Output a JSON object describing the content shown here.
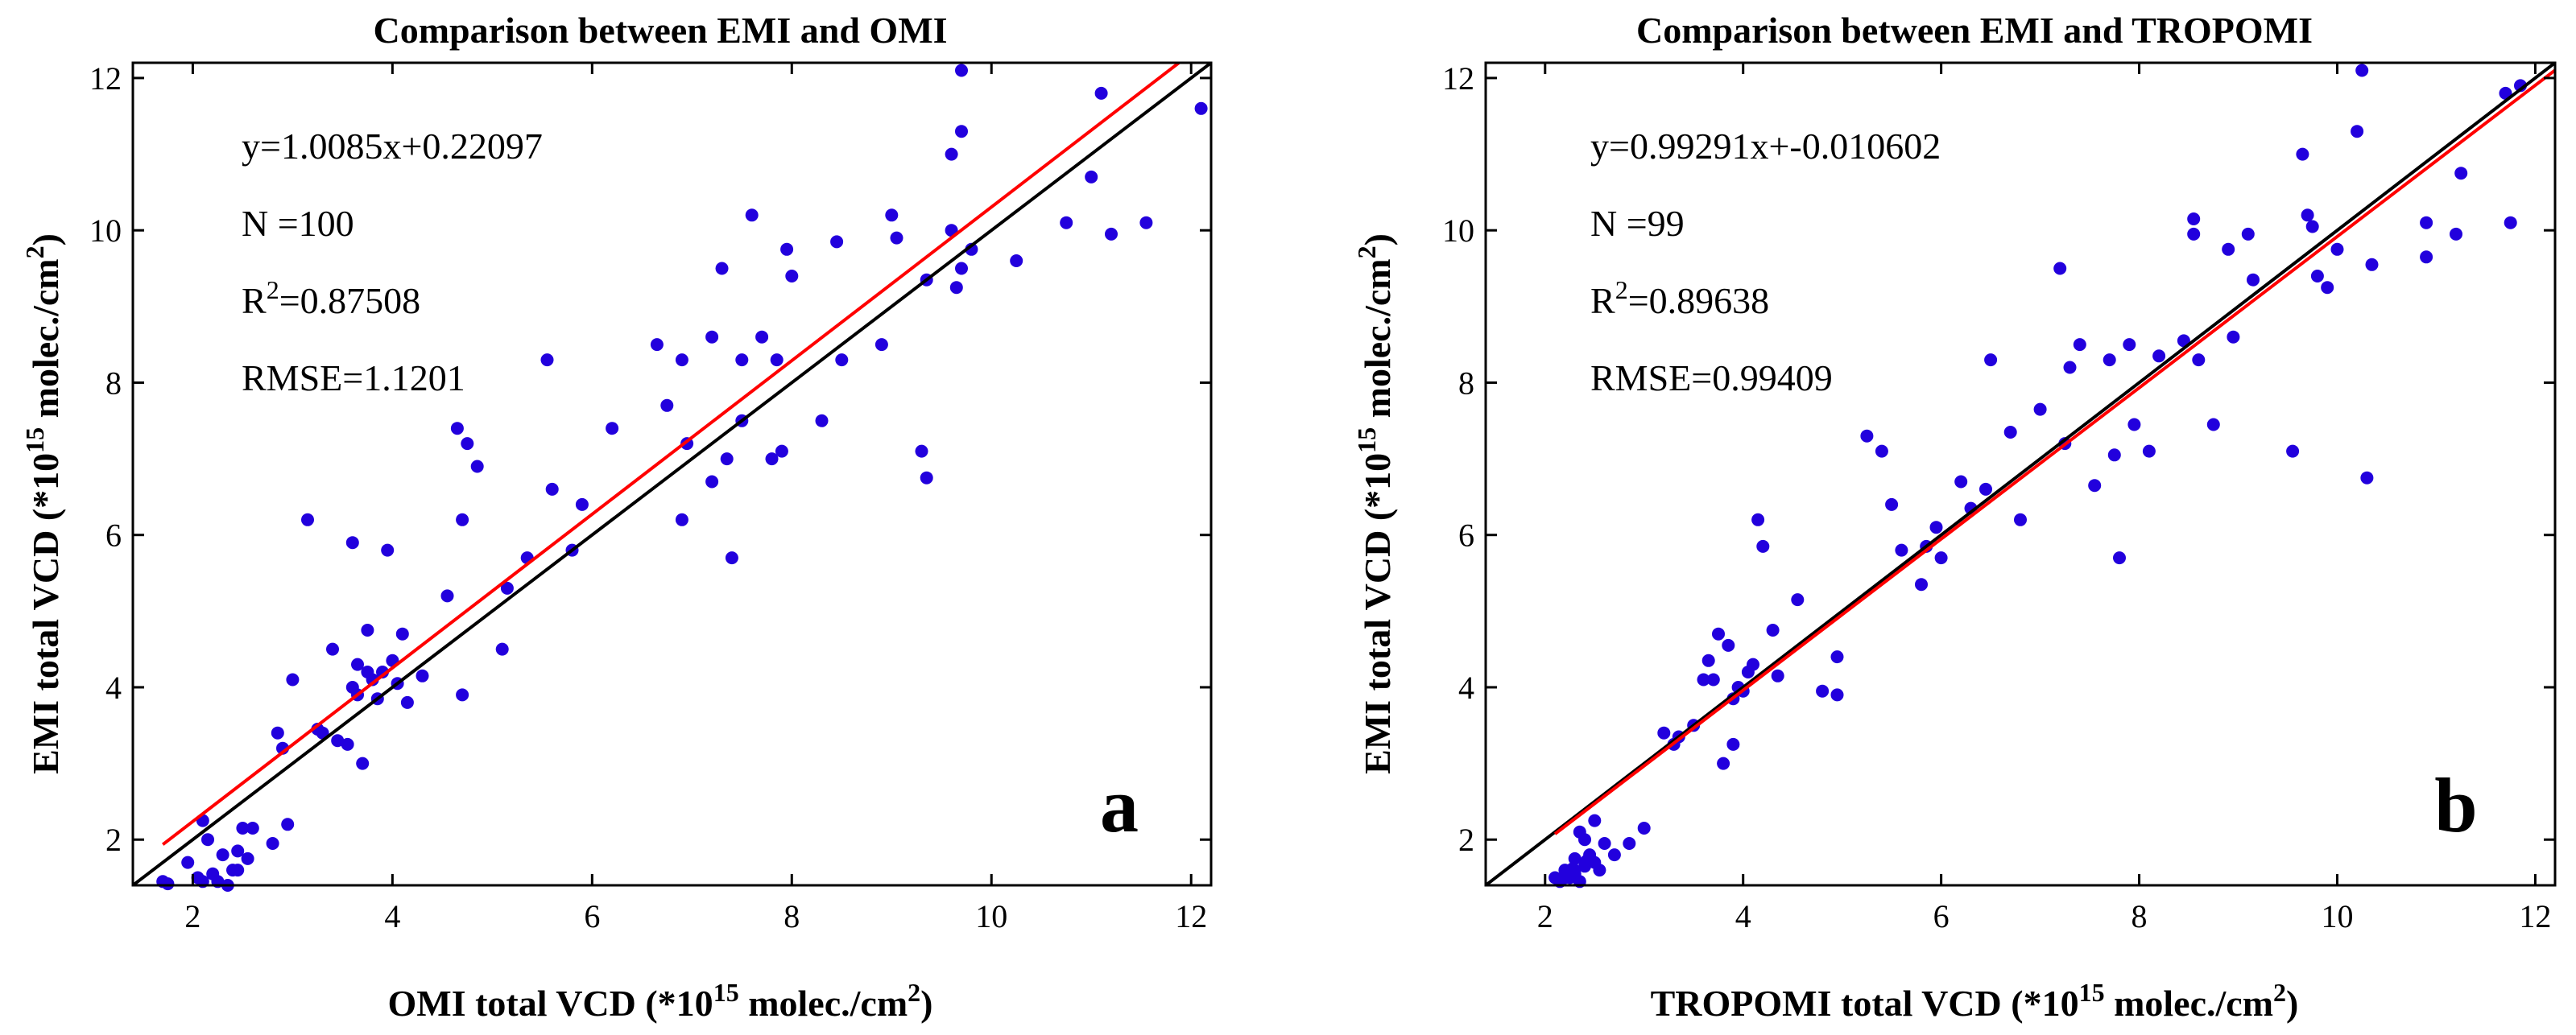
{
  "chart_data": [
    {
      "type": "scatter",
      "panel": "a",
      "title": "Comparison between EMI and OMI",
      "xlabel": {
        "pre": "OMI total VCD (*10",
        "sup1": "15",
        "mid": " molec./cm",
        "sup2": "2",
        "post": ")"
      },
      "ylabel": {
        "pre": "EMI total VCD (*10",
        "sup1": "15",
        "mid": " molec./cm",
        "sup2": "2",
        "post": ")"
      },
      "xlim": [
        1.4,
        12.2
      ],
      "ylim": [
        1.4,
        12.2
      ],
      "xticks": [
        2,
        4,
        6,
        8,
        10,
        12
      ],
      "yticks": [
        2,
        4,
        6,
        8,
        10,
        12
      ],
      "stats": {
        "equation": "y=1.0085x+0.22097",
        "n": "N  =100",
        "r2_pre": "R",
        "r2_sup": "2",
        "r2_post": "=0.87508",
        "rmse": "RMSE=1.1201"
      },
      "fit": {
        "slope": 1.0085,
        "intercept": 0.22097,
        "color": "#ff0000",
        "x_range": [
          1.7,
          12.2
        ]
      },
      "identity_line": {
        "color": "#000000"
      },
      "point_color": "#2200dd",
      "points": [
        [
          1.7,
          1.45
        ],
        [
          1.75,
          1.42
        ],
        [
          1.95,
          1.7
        ],
        [
          2.05,
          1.5
        ],
        [
          2.1,
          1.45
        ],
        [
          2.1,
          2.25
        ],
        [
          2.15,
          2.0
        ],
        [
          2.2,
          1.55
        ],
        [
          2.25,
          1.45
        ],
        [
          2.3,
          1.8
        ],
        [
          2.35,
          1.4
        ],
        [
          2.4,
          1.6
        ],
        [
          2.45,
          1.85
        ],
        [
          2.45,
          1.6
        ],
        [
          2.5,
          2.15
        ],
        [
          2.55,
          1.75
        ],
        [
          2.6,
          2.15
        ],
        [
          2.8,
          1.95
        ],
        [
          2.85,
          3.4
        ],
        [
          2.9,
          3.2
        ],
        [
          3.0,
          4.1
        ],
        [
          3.15,
          6.2
        ],
        [
          3.25,
          3.45
        ],
        [
          3.4,
          4.5
        ],
        [
          3.45,
          3.3
        ],
        [
          3.55,
          3.25
        ],
        [
          3.6,
          4.0
        ],
        [
          3.6,
          5.9
        ],
        [
          3.65,
          3.9
        ],
        [
          3.65,
          4.3
        ],
        [
          3.7,
          3.0
        ],
        [
          3.75,
          4.2
        ],
        [
          3.75,
          4.75
        ],
        [
          3.8,
          4.1
        ],
        [
          3.85,
          3.85
        ],
        [
          3.9,
          4.2
        ],
        [
          3.95,
          5.8
        ],
        [
          4.0,
          4.35
        ],
        [
          4.05,
          4.05
        ],
        [
          4.1,
          4.7
        ],
        [
          4.15,
          3.8
        ],
        [
          4.3,
          4.15
        ],
        [
          4.55,
          5.2
        ],
        [
          4.7,
          3.9
        ],
        [
          4.75,
          7.2
        ],
        [
          4.7,
          6.2
        ],
        [
          4.65,
          7.4
        ],
        [
          4.85,
          6.9
        ],
        [
          5.1,
          4.5
        ],
        [
          5.15,
          5.3
        ],
        [
          5.35,
          5.7
        ],
        [
          5.55,
          8.3
        ],
        [
          5.6,
          6.6
        ],
        [
          5.8,
          5.8
        ],
        [
          5.9,
          6.4
        ],
        [
          6.2,
          7.4
        ],
        [
          6.65,
          8.5
        ],
        [
          6.75,
          7.7
        ],
        [
          6.9,
          6.2
        ],
        [
          6.9,
          8.3
        ],
        [
          6.95,
          7.2
        ],
        [
          7.2,
          8.6
        ],
        [
          7.2,
          6.7
        ],
        [
          7.3,
          9.5
        ],
        [
          7.35,
          7.0
        ],
        [
          7.4,
          5.7
        ],
        [
          7.5,
          8.3
        ],
        [
          7.5,
          7.5
        ],
        [
          7.6,
          10.2
        ],
        [
          7.7,
          8.6
        ],
        [
          7.8,
          7.0
        ],
        [
          7.85,
          8.3
        ],
        [
          7.9,
          7.1
        ],
        [
          7.95,
          9.75
        ],
        [
          8.0,
          9.4
        ],
        [
          8.3,
          7.5
        ],
        [
          8.45,
          9.85
        ],
        [
          8.5,
          8.3
        ],
        [
          8.9,
          8.5
        ],
        [
          9.0,
          10.2
        ],
        [
          9.05,
          9.9
        ],
        [
          9.3,
          7.1
        ],
        [
          9.35,
          6.75
        ],
        [
          9.35,
          9.35
        ],
        [
          9.6,
          11.0
        ],
        [
          9.6,
          10.0
        ],
        [
          9.65,
          9.25
        ],
        [
          9.7,
          9.5
        ],
        [
          9.7,
          11.3
        ],
        [
          9.7,
          12.1
        ],
        [
          9.8,
          9.75
        ],
        [
          10.25,
          9.6
        ],
        [
          10.75,
          10.1
        ],
        [
          11.0,
          10.7
        ],
        [
          11.1,
          11.8
        ],
        [
          11.2,
          9.95
        ],
        [
          11.55,
          10.1
        ],
        [
          12.1,
          11.6
        ],
        [
          2.95,
          2.2
        ],
        [
          3.3,
          3.4
        ]
      ]
    },
    {
      "type": "scatter",
      "panel": "b",
      "title": "Comparison between EMI and TROPOMI",
      "xlabel": {
        "pre": "TROPOMI total VCD (*10",
        "sup1": "15",
        "mid": " molec./cm",
        "sup2": "2",
        "post": ")"
      },
      "ylabel": {
        "pre": "EMI total VCD (*10",
        "sup1": "15",
        "mid": " molec./cm",
        "sup2": "2",
        "post": ")"
      },
      "xlim": [
        1.4,
        12.2
      ],
      "ylim": [
        1.4,
        12.2
      ],
      "xticks": [
        2,
        4,
        6,
        8,
        10,
        12
      ],
      "yticks": [
        2,
        4,
        6,
        8,
        10,
        12
      ],
      "stats": {
        "equation": "y=0.99291x+-0.010602",
        "n": "N  =99",
        "r2_pre": "R",
        "r2_sup": "2",
        "r2_post": "=0.89638",
        "rmse": "RMSE=0.99409"
      },
      "fit": {
        "slope": 0.99291,
        "intercept": -0.010602,
        "color": "#ff0000",
        "x_range": [
          2.1,
          12.2
        ]
      },
      "identity_line": {
        "color": "#000000"
      },
      "point_color": "#2200dd",
      "points": [
        [
          2.1,
          1.5
        ],
        [
          2.15,
          1.45
        ],
        [
          2.2,
          1.6
        ],
        [
          2.25,
          1.5
        ],
        [
          2.3,
          1.55
        ],
        [
          2.3,
          1.75
        ],
        [
          2.35,
          1.45
        ],
        [
          2.35,
          2.1
        ],
        [
          2.4,
          1.65
        ],
        [
          2.4,
          2.0
        ],
        [
          2.45,
          1.8
        ],
        [
          2.5,
          1.7
        ],
        [
          2.5,
          2.25
        ],
        [
          2.6,
          1.95
        ],
        [
          2.7,
          1.8
        ],
        [
          2.85,
          1.95
        ],
        [
          3.0,
          2.15
        ],
        [
          3.2,
          3.4
        ],
        [
          3.3,
          3.25
        ],
        [
          3.5,
          3.5
        ],
        [
          3.6,
          4.1
        ],
        [
          3.65,
          4.35
        ],
        [
          3.7,
          4.1
        ],
        [
          3.75,
          4.7
        ],
        [
          3.8,
          3.0
        ],
        [
          3.85,
          4.55
        ],
        [
          3.9,
          3.25
        ],
        [
          3.9,
          3.85
        ],
        [
          3.95,
          4.0
        ],
        [
          4.0,
          3.95
        ],
        [
          4.1,
          4.3
        ],
        [
          4.15,
          6.2
        ],
        [
          4.2,
          5.85
        ],
        [
          4.3,
          4.75
        ],
        [
          4.35,
          4.15
        ],
        [
          4.55,
          5.15
        ],
        [
          4.8,
          3.95
        ],
        [
          4.95,
          3.9
        ],
        [
          4.95,
          4.4
        ],
        [
          5.25,
          7.3
        ],
        [
          5.4,
          7.1
        ],
        [
          5.5,
          6.4
        ],
        [
          5.8,
          5.35
        ],
        [
          5.85,
          5.85
        ],
        [
          5.95,
          6.1
        ],
        [
          6.0,
          5.7
        ],
        [
          6.2,
          6.7
        ],
        [
          6.45,
          6.6
        ],
        [
          6.5,
          8.3
        ],
        [
          6.7,
          7.35
        ],
        [
          6.8,
          6.2
        ],
        [
          7.0,
          7.65
        ],
        [
          7.2,
          9.5
        ],
        [
          7.25,
          7.2
        ],
        [
          7.3,
          8.2
        ],
        [
          7.4,
          8.5
        ],
        [
          7.55,
          6.65
        ],
        [
          7.7,
          8.3
        ],
        [
          7.75,
          7.05
        ],
        [
          7.8,
          5.7
        ],
        [
          7.9,
          8.5
        ],
        [
          7.95,
          7.45
        ],
        [
          8.1,
          7.1
        ],
        [
          8.2,
          8.35
        ],
        [
          8.45,
          8.55
        ],
        [
          8.55,
          9.95
        ],
        [
          8.55,
          10.15
        ],
        [
          8.6,
          8.3
        ],
        [
          8.75,
          7.45
        ],
        [
          8.9,
          9.75
        ],
        [
          8.95,
          8.6
        ],
        [
          9.1,
          9.95
        ],
        [
          9.15,
          9.35
        ],
        [
          9.55,
          7.1
        ],
        [
          9.65,
          11.0
        ],
        [
          9.7,
          10.2
        ],
        [
          9.75,
          10.05
        ],
        [
          9.8,
          9.4
        ],
        [
          9.9,
          9.25
        ],
        [
          10.0,
          9.75
        ],
        [
          10.2,
          11.3
        ],
        [
          10.25,
          12.1
        ],
        [
          10.3,
          6.75
        ],
        [
          10.35,
          9.55
        ],
        [
          10.9,
          10.1
        ],
        [
          10.9,
          9.65
        ],
        [
          11.2,
          9.95
        ],
        [
          11.25,
          10.75
        ],
        [
          11.7,
          11.8
        ],
        [
          11.75,
          10.1
        ],
        [
          11.85,
          11.9
        ],
        [
          2.2,
          1.5
        ],
        [
          2.28,
          1.62
        ],
        [
          2.42,
          1.72
        ],
        [
          2.55,
          1.6
        ],
        [
          3.35,
          3.35
        ],
        [
          4.05,
          4.2
        ],
        [
          5.6,
          5.8
        ],
        [
          6.3,
          6.35
        ]
      ]
    }
  ]
}
